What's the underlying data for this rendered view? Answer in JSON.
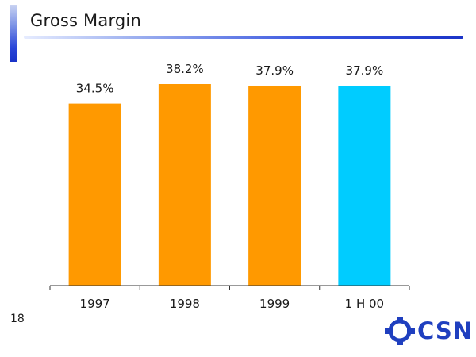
{
  "slide": {
    "title": "Gross Margin",
    "page_number": "18"
  },
  "logo": {
    "text": "CSN"
  },
  "colors": {
    "bar_default": "#FF9900",
    "bar_highlight": "#00CCFF",
    "axis": "#333333",
    "label": "#1a1a1a"
  },
  "chart_data": {
    "type": "bar",
    "title": "Gross Margin",
    "xlabel": "",
    "ylabel": "",
    "categories": [
      "1997",
      "1998",
      "1999",
      "1 H 00"
    ],
    "values": [
      34.5,
      38.2,
      37.9,
      37.9
    ],
    "data_labels": [
      "34.5%",
      "38.2%",
      "37.9%",
      "37.9%"
    ],
    "highlight_index": 3,
    "ylim": [
      0,
      40
    ],
    "grid": false,
    "legend": "none"
  }
}
